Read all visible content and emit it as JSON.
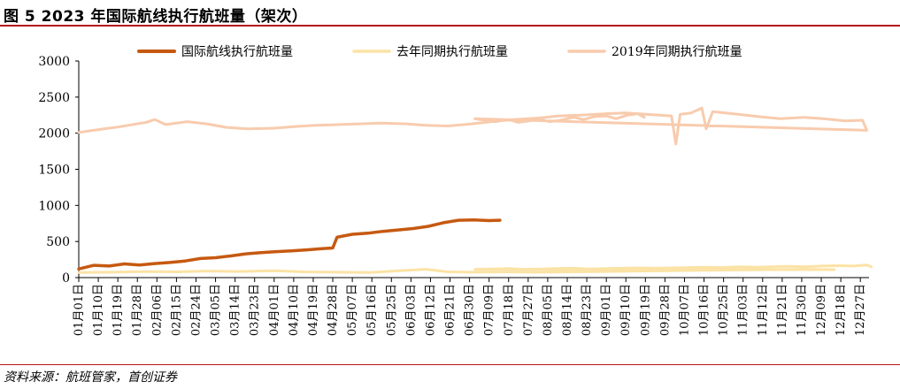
{
  "figure": {
    "title": "图 5 2023 年国际航线执行航班量（架次）",
    "source": "资料来源：航班管家，首创证券"
  },
  "chart_data": {
    "type": "line",
    "y_ticks": [
      0,
      500,
      1000,
      1500,
      2000,
      2500,
      3000
    ],
    "ylim": [
      0,
      3000
    ],
    "date_start": "2023-01-01",
    "x_tick_labels": [
      "01月01日",
      "01月10日",
      "01月19日",
      "01月28日",
      "02月06日",
      "02月15日",
      "02月24日",
      "03月05日",
      "03月14日",
      "03月23日",
      "04月01日",
      "04月10日",
      "04月19日",
      "04月28日",
      "05月07日",
      "05月16日",
      "05月25日",
      "06月03日",
      "06月12日",
      "06月21日",
      "06月30日",
      "07月09日",
      "07月18日",
      "07月27日",
      "08月05日",
      "08月14日",
      "08月23日",
      "09月01日",
      "09月10日",
      "09月19日",
      "09月28日",
      "10月07日",
      "10月16日",
      "10月25日",
      "11月03日",
      "11月12日",
      "11月21日",
      "11月30日",
      "12月09日",
      "12月18日",
      "12月27日"
    ],
    "legend_position": "top",
    "series": [
      {
        "name": "国际航线执行航班量",
        "color": "#c65911",
        "line_width": 3.5,
        "points": [
          [
            "01-01",
            120
          ],
          [
            "01-08",
            170
          ],
          [
            "01-15",
            160
          ],
          [
            "01-22",
            190
          ],
          [
            "01-29",
            175
          ],
          [
            "02-05",
            195
          ],
          [
            "02-12",
            210
          ],
          [
            "02-19",
            230
          ],
          [
            "02-26",
            265
          ],
          [
            "03-05",
            275
          ],
          [
            "03-12",
            300
          ],
          [
            "03-19",
            330
          ],
          [
            "03-26",
            345
          ],
          [
            "04-02",
            360
          ],
          [
            "04-09",
            370
          ],
          [
            "04-16",
            385
          ],
          [
            "04-23",
            400
          ],
          [
            "04-28",
            410
          ],
          [
            "04-30",
            560
          ],
          [
            "05-07",
            600
          ],
          [
            "05-14",
            615
          ],
          [
            "05-21",
            640
          ],
          [
            "05-28",
            660
          ],
          [
            "06-04",
            680
          ],
          [
            "06-11",
            710
          ],
          [
            "06-18",
            760
          ],
          [
            "06-25",
            795
          ],
          [
            "07-02",
            800
          ],
          [
            "07-09",
            790
          ],
          [
            "07-14",
            795
          ]
        ]
      },
      {
        "name": "去年同期执行航班量",
        "color": "#fbe3a6",
        "line_width": 3,
        "points": [
          [
            "01-01",
            70
          ],
          [
            "01-15",
            75
          ],
          [
            "02-01",
            85
          ],
          [
            "02-15",
            80
          ],
          [
            "03-01",
            90
          ],
          [
            "03-15",
            85
          ],
          [
            "04-01",
            95
          ],
          [
            "04-15",
            80
          ],
          [
            "05-01",
            75
          ],
          [
            "05-15",
            70
          ],
          [
            "06-01",
            100
          ],
          [
            "06-10",
            115
          ],
          [
            "06-20",
            80
          ],
          [
            "07-01",
            75
          ],
          [
            "07-15",
            80
          ],
          [
            "08-01",
            75
          ],
          [
            "08-15",
            80
          ],
          [
            "09-01",
            85
          ],
          [
            "09-15",
            90
          ],
          [
            "10-01",
            95
          ],
          [
            "10-15",
            100
          ],
          [
            "11-01",
            105
          ],
          [
            "11-15",
            110
          ],
          [
            "12-01",
            115
          ],
          [
            "12-15",
            110
          ],
          [
            "01-01",
            115
          ],
          [
            "01-15",
            120
          ],
          [
            "02-01",
            125
          ],
          [
            "02-15",
            115
          ],
          [
            "03-01",
            120
          ],
          [
            "03-15",
            125
          ],
          [
            "04-01",
            130
          ],
          [
            "04-15",
            120
          ],
          [
            "05-01",
            125
          ],
          [
            "05-15",
            130
          ],
          [
            "06-01",
            135
          ],
          [
            "06-15",
            130
          ],
          [
            "07-01",
            135
          ],
          [
            "07-15",
            140
          ],
          [
            "08-01",
            145
          ],
          [
            "08-15",
            140
          ],
          [
            "09-01",
            150
          ],
          [
            "09-15",
            145
          ],
          [
            "10-01",
            150
          ],
          [
            "10-15",
            155
          ],
          [
            "11-01",
            150
          ],
          [
            "11-15",
            160
          ],
          [
            "12-01",
            165
          ],
          [
            "12-15",
            160
          ],
          [
            "12-27",
            175
          ],
          [
            "12-31",
            150
          ]
        ]
      },
      {
        "name": "2019年同期执行航班量",
        "color": "#f8cbad",
        "line_width": 3,
        "points": [
          [
            "01-01",
            2010
          ],
          [
            "01-10",
            2050
          ],
          [
            "01-20",
            2090
          ],
          [
            "02-01",
            2150
          ],
          [
            "02-05",
            2190
          ],
          [
            "02-10",
            2120
          ],
          [
            "02-20",
            2160
          ],
          [
            "03-01",
            2130
          ],
          [
            "03-10",
            2080
          ],
          [
            "03-20",
            2060
          ],
          [
            "04-01",
            2070
          ],
          [
            "04-10",
            2090
          ],
          [
            "04-20",
            2110
          ],
          [
            "05-01",
            2120
          ],
          [
            "05-10",
            2130
          ],
          [
            "05-20",
            2140
          ],
          [
            "06-01",
            2130
          ],
          [
            "06-10",
            2110
          ],
          [
            "06-20",
            2100
          ],
          [
            "07-01",
            2130
          ],
          [
            "07-10",
            2160
          ],
          [
            "07-20",
            2190
          ],
          [
            "08-01",
            2210
          ],
          [
            "08-10",
            2240
          ],
          [
            "08-20",
            2250
          ],
          [
            "09-01",
            2270
          ],
          [
            "09-10",
            2280
          ],
          [
            "09-20",
            2260
          ],
          [
            "10-01",
            2240
          ],
          [
            "10-03",
            1850
          ],
          [
            "10-05",
            2260
          ],
          [
            "10-10",
            2280
          ],
          [
            "10-15",
            2350
          ],
          [
            "10-17",
            2060
          ],
          [
            "10-20",
            2300
          ],
          [
            "11-01",
            2260
          ],
          [
            "11-10",
            2230
          ],
          [
            "11-20",
            2200
          ],
          [
            "12-01",
            2220
          ],
          [
            "12-10",
            2200
          ],
          [
            "12-20",
            2170
          ],
          [
            "12-28",
            2180
          ],
          [
            "12-30",
            2040
          ],
          [
            "01-01",
            2200
          ],
          [
            "01-10",
            2180
          ],
          [
            "01-20",
            2160
          ],
          [
            "02-01",
            2190
          ],
          [
            "02-10",
            2150
          ],
          [
            "02-20",
            2170
          ],
          [
            "03-01",
            2190
          ],
          [
            "03-10",
            2160
          ],
          [
            "03-20",
            2180
          ],
          [
            "04-01",
            2220
          ],
          [
            "04-10",
            2190
          ],
          [
            "04-20",
            2230
          ],
          [
            "05-01",
            2240
          ],
          [
            "05-10",
            2200
          ],
          [
            "05-20",
            2250
          ],
          [
            "05-30",
            2270
          ],
          [
            "06-05",
            2220
          ]
        ]
      }
    ]
  }
}
